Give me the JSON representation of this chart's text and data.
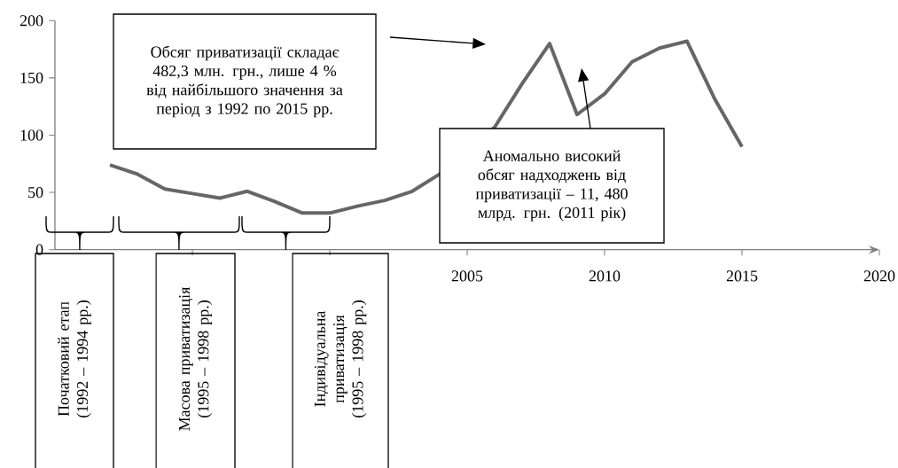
{
  "chart_data": {
    "type": "line",
    "x": [
      1992,
      1993,
      1994,
      1995,
      1996,
      1997,
      1998,
      1999,
      2000,
      2001,
      2002,
      2003,
      2004,
      2005,
      2006,
      2007,
      2008,
      2009,
      2010,
      2011,
      2012,
      2013,
      2014,
      2015
    ],
    "series": [
      {
        "color": "#666666",
        "values": [
          74,
          66,
          53,
          49,
          45,
          51,
          42,
          32,
          32,
          38,
          43,
          51,
          66,
          null,
          107,
          145,
          180,
          118,
          136,
          164,
          176,
          182,
          132,
          90
        ]
      }
    ],
    "xlim": [
      1990,
      2020
    ],
    "xticks": [
      {
        "value": 1995,
        "label": null
      },
      {
        "value": 2000,
        "label": null
      },
      2005,
      2010,
      2015,
      2020
    ],
    "ylim": [
      0,
      200
    ],
    "yticks": [
      0,
      50,
      100,
      150,
      200
    ],
    "annotations": [
      "Обсяг приватизації складає 482,3 млн. грн., лише 4 % від найбільшого значення за період з 1992 по 2015 рр.",
      "Аномально високий обсяг надходжень від приватизації – 11, 480 млрд. грн. (2011 рік)",
      "Початковий етап (1992 – 1994 рр.)",
      "Масова приватизація (1995 – 1998 рр.)",
      "Індивідуальна приватизація (1995 – 1998 рр.)"
    ]
  }
}
